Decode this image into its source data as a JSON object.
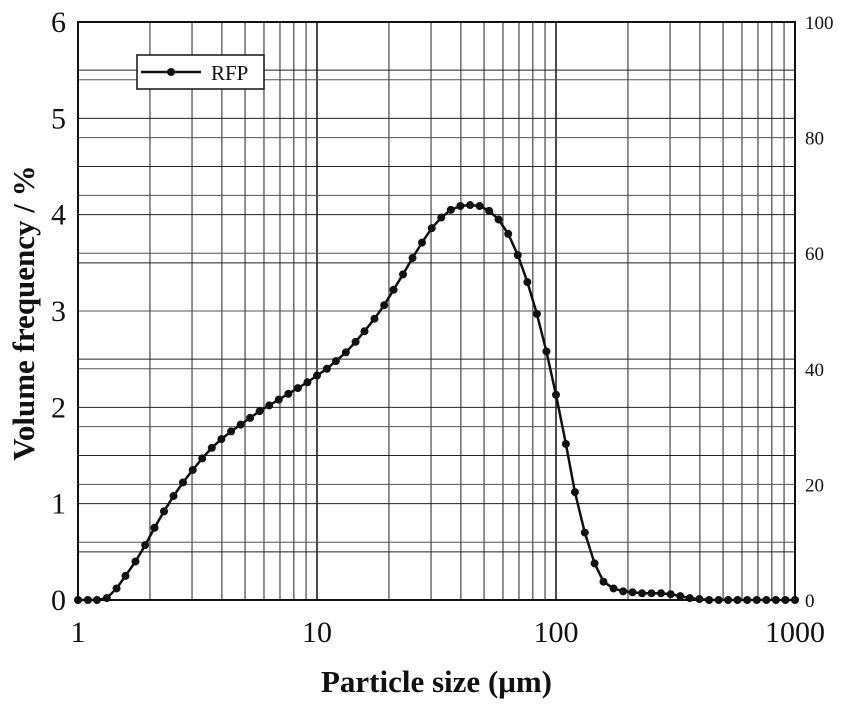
{
  "chart_data": {
    "type": "line",
    "xlabel": "Particle size (μm)",
    "ylabel": "Volume frequency / %",
    "x_scale": "log",
    "xlim": [
      1,
      1000
    ],
    "ylim": [
      0,
      6
    ],
    "y2lim": [
      0,
      100
    ],
    "x_ticks": [
      "1",
      "10",
      "100",
      "1000"
    ],
    "y_ticks": [
      "0",
      "1",
      "2",
      "3",
      "4",
      "5",
      "6"
    ],
    "y2_ticks": [
      "0",
      "20",
      "40",
      "60",
      "80",
      "100"
    ],
    "grid": true,
    "legend_position": "top-left",
    "series": [
      {
        "name": "RFP",
        "color": "#111111",
        "marker": "circle",
        "x": [
          1.0,
          1.1,
          1.2,
          1.32,
          1.45,
          1.58,
          1.74,
          1.91,
          2.09,
          2.29,
          2.51,
          2.75,
          3.02,
          3.31,
          3.63,
          3.98,
          4.37,
          4.79,
          5.25,
          5.75,
          6.31,
          6.92,
          7.59,
          8.32,
          9.12,
          10.0,
          11.0,
          12.0,
          13.2,
          14.5,
          15.8,
          17.4,
          19.1,
          20.9,
          22.9,
          25.1,
          27.5,
          30.2,
          33.1,
          36.3,
          39.8,
          43.7,
          47.9,
          52.5,
          57.5,
          63.1,
          69.2,
          75.9,
          83.2,
          91.2,
          100,
          110,
          120,
          132,
          145,
          158,
          174,
          191,
          209,
          229,
          251,
          275,
          302,
          331,
          363,
          398,
          437,
          479,
          525,
          575,
          631,
          692,
          759,
          832,
          912,
          1000
        ],
        "values": [
          0.0,
          0.0,
          0.0,
          0.02,
          0.12,
          0.25,
          0.4,
          0.57,
          0.75,
          0.92,
          1.08,
          1.22,
          1.35,
          1.47,
          1.58,
          1.67,
          1.75,
          1.82,
          1.89,
          1.96,
          2.02,
          2.08,
          2.14,
          2.2,
          2.26,
          2.33,
          2.4,
          2.48,
          2.57,
          2.68,
          2.79,
          2.92,
          3.06,
          3.22,
          3.38,
          3.55,
          3.71,
          3.86,
          3.97,
          4.05,
          4.09,
          4.1,
          4.09,
          4.04,
          3.95,
          3.8,
          3.58,
          3.3,
          2.97,
          2.58,
          2.13,
          1.62,
          1.12,
          0.7,
          0.38,
          0.19,
          0.12,
          0.09,
          0.08,
          0.07,
          0.07,
          0.07,
          0.06,
          0.04,
          0.02,
          0.01,
          0.0,
          0.0,
          0.0,
          0.0,
          0.0,
          0.0,
          0.0,
          0.0,
          0.0,
          0.0
        ]
      }
    ]
  }
}
